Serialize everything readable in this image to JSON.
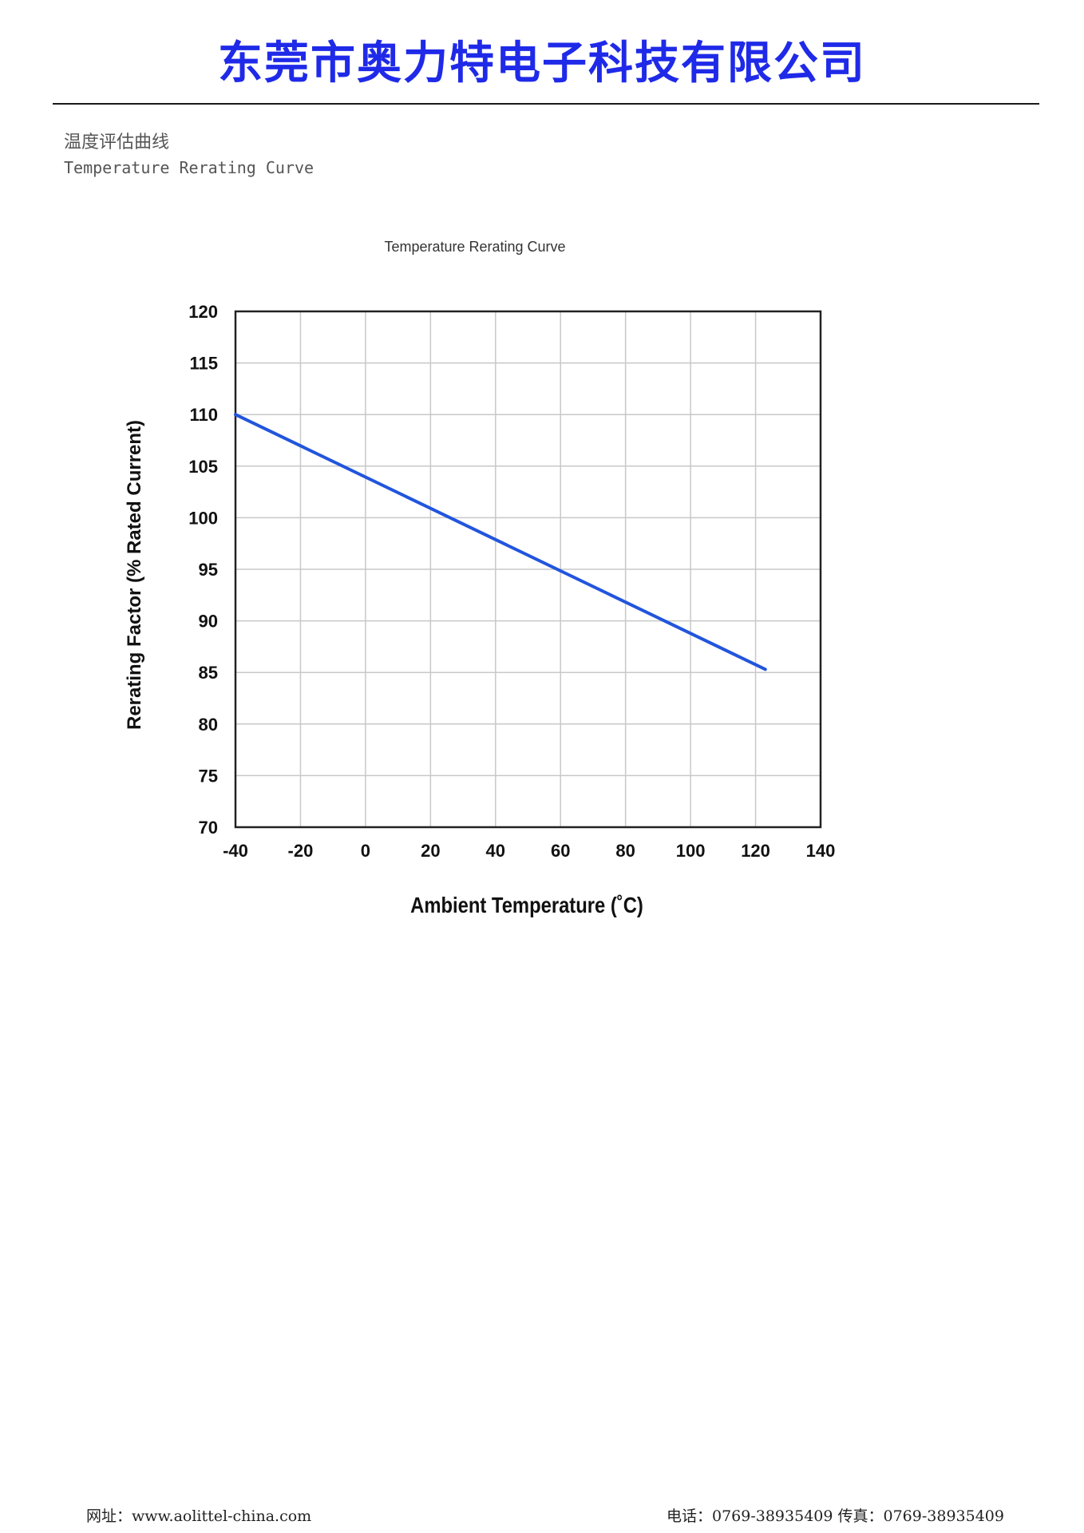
{
  "header": {
    "company_name": "东莞市奥力特电子科技有限公司"
  },
  "section": {
    "title_cn": "温度评估曲线",
    "title_en": "Temperature Rerating Curve"
  },
  "chart_data": {
    "type": "line",
    "title": "Temperature Rerating Curve",
    "xlabel": "Ambient Temperature (˚C)",
    "ylabel": "Rerating Factor (% Rated Current)",
    "xlim": [
      -40,
      140
    ],
    "ylim": [
      70,
      120
    ],
    "xticks": [
      -40,
      -20,
      0,
      20,
      40,
      60,
      80,
      100,
      120,
      140
    ],
    "yticks": [
      70,
      75,
      80,
      85,
      90,
      95,
      100,
      105,
      110,
      115,
      120
    ],
    "grid": true,
    "legend": "none",
    "series": [
      {
        "color": "#2255dd",
        "x": [
          -40,
          123
        ],
        "y": [
          110,
          85.3
        ]
      }
    ]
  },
  "footer": {
    "website": "网址：www.aolittel-china.com",
    "contact": "电话：0769-38935409  传真：0769-38935409"
  }
}
